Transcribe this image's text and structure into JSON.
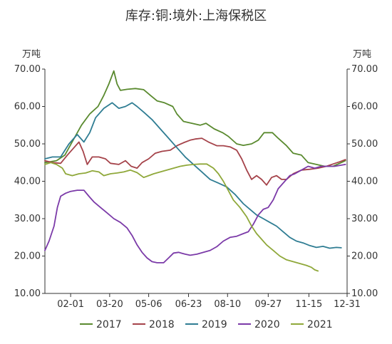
{
  "chart_data": {
    "type": "line",
    "title": "库存:铜:境外:上海保税区",
    "y_unit_left": "万吨",
    "y_unit_right": "万吨",
    "ylim": [
      10,
      70
    ],
    "y_ticks": [
      10,
      20,
      30,
      40,
      50,
      60,
      70
    ],
    "y_tick_labels": [
      "10.00",
      "20.00",
      "30.00",
      "40.00",
      "50.00",
      "60.00",
      "70.00"
    ],
    "xlim": [
      1,
      365
    ],
    "x_ticks": [
      32,
      79,
      126,
      174,
      221,
      270,
      319,
      365
    ],
    "x_tick_labels": [
      "02-01",
      "03-20",
      "05-06",
      "06-23",
      "08-10",
      "09-27",
      "11-15",
      "12-31"
    ],
    "grid": false,
    "legend_position": "bottom",
    "series": [
      {
        "name": "2017",
        "color": "#5a8a2f",
        "points": [
          [
            1,
            45
          ],
          [
            15,
            45.5
          ],
          [
            25,
            47
          ],
          [
            35,
            51
          ],
          [
            45,
            55
          ],
          [
            55,
            58
          ],
          [
            65,
            60
          ],
          [
            72,
            63
          ],
          [
            78,
            66
          ],
          [
            84,
            69.5
          ],
          [
            88,
            66
          ],
          [
            92,
            64.3
          ],
          [
            100,
            64.6
          ],
          [
            110,
            64.8
          ],
          [
            120,
            64.5
          ],
          [
            128,
            63
          ],
          [
            136,
            61.5
          ],
          [
            145,
            61
          ],
          [
            155,
            60
          ],
          [
            160,
            58
          ],
          [
            168,
            56
          ],
          [
            178,
            55.5
          ],
          [
            188,
            55
          ],
          [
            195,
            55.5
          ],
          [
            205,
            54
          ],
          [
            215,
            53
          ],
          [
            222,
            52
          ],
          [
            232,
            50
          ],
          [
            240,
            49.6
          ],
          [
            250,
            50
          ],
          [
            258,
            51
          ],
          [
            265,
            53
          ],
          [
            275,
            53
          ],
          [
            282,
            51.5
          ],
          [
            292,
            49.5
          ],
          [
            300,
            47.5
          ],
          [
            310,
            47
          ],
          [
            318,
            45
          ],
          [
            328,
            44.5
          ],
          [
            338,
            44
          ],
          [
            348,
            44
          ],
          [
            358,
            45
          ],
          [
            363,
            45.5
          ]
        ]
      },
      {
        "name": "2018",
        "color": "#a5434a",
        "points": [
          [
            1,
            45.5
          ],
          [
            10,
            45
          ],
          [
            20,
            44.8
          ],
          [
            28,
            47
          ],
          [
            36,
            49
          ],
          [
            42,
            50.5
          ],
          [
            47,
            48
          ],
          [
            52,
            44.5
          ],
          [
            58,
            46.5
          ],
          [
            66,
            46.5
          ],
          [
            74,
            46
          ],
          [
            80,
            44.8
          ],
          [
            90,
            44.5
          ],
          [
            98,
            45.5
          ],
          [
            105,
            44
          ],
          [
            112,
            43.5
          ],
          [
            118,
            45
          ],
          [
            126,
            46
          ],
          [
            134,
            47.5
          ],
          [
            142,
            48
          ],
          [
            152,
            48.3
          ],
          [
            160,
            49.5
          ],
          [
            168,
            50.3
          ],
          [
            176,
            51
          ],
          [
            182,
            51.3
          ],
          [
            190,
            51.5
          ],
          [
            198,
            50.5
          ],
          [
            208,
            49.5
          ],
          [
            216,
            49.5
          ],
          [
            224,
            49.2
          ],
          [
            232,
            48.3
          ],
          [
            238,
            46
          ],
          [
            244,
            43
          ],
          [
            250,
            40.5
          ],
          [
            256,
            41.5
          ],
          [
            262,
            40.5
          ],
          [
            268,
            39
          ],
          [
            274,
            41
          ],
          [
            280,
            41.5
          ],
          [
            286,
            40.5
          ],
          [
            292,
            40.5
          ],
          [
            300,
            42
          ],
          [
            310,
            43
          ],
          [
            320,
            43.2
          ],
          [
            330,
            43.5
          ],
          [
            340,
            44
          ],
          [
            348,
            44.6
          ],
          [
            356,
            45.2
          ],
          [
            363,
            45.8
          ]
        ]
      },
      {
        "name": "2019",
        "color": "#2f7d93",
        "points": [
          [
            1,
            46
          ],
          [
            10,
            46.5
          ],
          [
            20,
            46.5
          ],
          [
            30,
            50
          ],
          [
            40,
            52.5
          ],
          [
            48,
            50.5
          ],
          [
            55,
            53
          ],
          [
            62,
            57
          ],
          [
            72,
            59.5
          ],
          [
            82,
            61
          ],
          [
            90,
            59.5
          ],
          [
            98,
            60
          ],
          [
            106,
            61
          ],
          [
            112,
            60
          ],
          [
            120,
            58.5
          ],
          [
            130,
            56.5
          ],
          [
            140,
            54
          ],
          [
            150,
            51.5
          ],
          [
            160,
            49
          ],
          [
            170,
            46.5
          ],
          [
            180,
            44.5
          ],
          [
            190,
            42.5
          ],
          [
            200,
            40.5
          ],
          [
            210,
            39.5
          ],
          [
            220,
            38.5
          ],
          [
            230,
            36.5
          ],
          [
            240,
            34
          ],
          [
            248,
            32.5
          ],
          [
            256,
            31
          ],
          [
            264,
            30
          ],
          [
            272,
            29
          ],
          [
            280,
            28
          ],
          [
            288,
            26.5
          ],
          [
            296,
            25
          ],
          [
            304,
            24
          ],
          [
            312,
            23.5
          ],
          [
            320,
            22.8
          ],
          [
            328,
            22.3
          ],
          [
            336,
            22.6
          ],
          [
            344,
            22.1
          ],
          [
            352,
            22.3
          ],
          [
            358,
            22.2
          ]
        ]
      },
      {
        "name": "2020",
        "color": "#7b3aa8",
        "points": [
          [
            1,
            21.5
          ],
          [
            6,
            24
          ],
          [
            12,
            28
          ],
          [
            16,
            33
          ],
          [
            20,
            36
          ],
          [
            26,
            36.8
          ],
          [
            32,
            37.3
          ],
          [
            40,
            37.6
          ],
          [
            48,
            37.6
          ],
          [
            54,
            36
          ],
          [
            60,
            34.5
          ],
          [
            68,
            33
          ],
          [
            76,
            31.5
          ],
          [
            84,
            30
          ],
          [
            92,
            29
          ],
          [
            100,
            27.5
          ],
          [
            106,
            25.5
          ],
          [
            112,
            23
          ],
          [
            118,
            21
          ],
          [
            124,
            19.5
          ],
          [
            130,
            18.5
          ],
          [
            136,
            18.2
          ],
          [
            144,
            18.2
          ],
          [
            150,
            19.5
          ],
          [
            156,
            20.8
          ],
          [
            162,
            21
          ],
          [
            170,
            20.5
          ],
          [
            176,
            20.2
          ],
          [
            184,
            20.5
          ],
          [
            192,
            21
          ],
          [
            200,
            21.5
          ],
          [
            208,
            22.5
          ],
          [
            216,
            24
          ],
          [
            224,
            25
          ],
          [
            232,
            25.3
          ],
          [
            240,
            26
          ],
          [
            246,
            26.5
          ],
          [
            252,
            28.5
          ],
          [
            258,
            31
          ],
          [
            264,
            32.5
          ],
          [
            270,
            33
          ],
          [
            276,
            35
          ],
          [
            282,
            38
          ],
          [
            290,
            40
          ],
          [
            296,
            41.5
          ],
          [
            302,
            42
          ],
          [
            310,
            43
          ],
          [
            318,
            44
          ],
          [
            326,
            43.5
          ],
          [
            334,
            44
          ],
          [
            342,
            44
          ],
          [
            350,
            44
          ],
          [
            358,
            44.3
          ],
          [
            363,
            44.5
          ]
        ]
      },
      {
        "name": "2021",
        "color": "#8fa83a",
        "points": [
          [
            1,
            44.5
          ],
          [
            8,
            45
          ],
          [
            15,
            44.5
          ],
          [
            22,
            43.5
          ],
          [
            26,
            42
          ],
          [
            34,
            41.5
          ],
          [
            42,
            42
          ],
          [
            50,
            42.2
          ],
          [
            58,
            42.8
          ],
          [
            66,
            42.5
          ],
          [
            72,
            41.5
          ],
          [
            80,
            42
          ],
          [
            88,
            42.2
          ],
          [
            96,
            42.5
          ],
          [
            104,
            43
          ],
          [
            112,
            42.3
          ],
          [
            120,
            41
          ],
          [
            126,
            41.5
          ],
          [
            132,
            42
          ],
          [
            140,
            42.5
          ],
          [
            148,
            43
          ],
          [
            156,
            43.5
          ],
          [
            164,
            44
          ],
          [
            172,
            44.3
          ],
          [
            180,
            44.5
          ],
          [
            188,
            44.6
          ],
          [
            196,
            44.6
          ],
          [
            204,
            43.5
          ],
          [
            210,
            42
          ],
          [
            216,
            40
          ],
          [
            222,
            37.5
          ],
          [
            228,
            35
          ],
          [
            236,
            33
          ],
          [
            244,
            30.5
          ],
          [
            250,
            28
          ],
          [
            256,
            26
          ],
          [
            262,
            24.5
          ],
          [
            268,
            23
          ],
          [
            276,
            21.5
          ],
          [
            284,
            20
          ],
          [
            292,
            19
          ],
          [
            300,
            18.5
          ],
          [
            308,
            18
          ],
          [
            316,
            17.5
          ],
          [
            322,
            17
          ],
          [
            326,
            16.3
          ],
          [
            330,
            16
          ]
        ]
      }
    ]
  }
}
